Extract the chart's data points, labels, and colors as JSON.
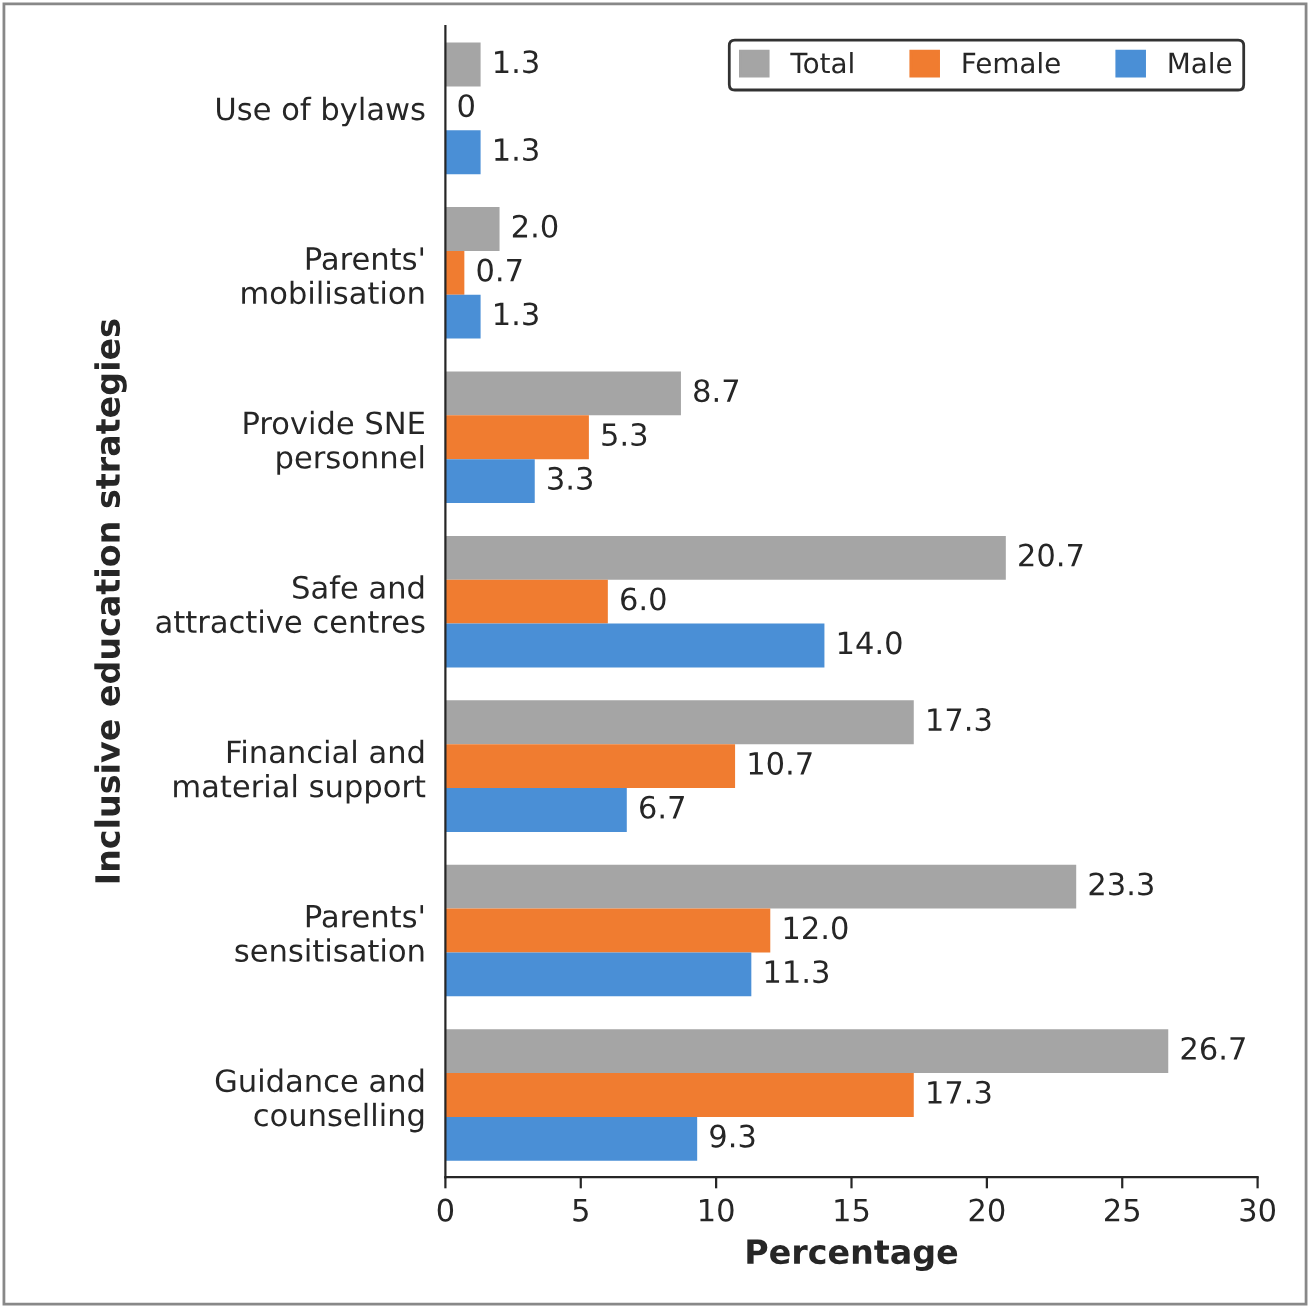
{
  "chart_data": {
    "type": "bar",
    "orientation": "horizontal",
    "xlabel": "Percentage",
    "ylabel": "Inclusive education strategies",
    "categories": [
      "Use of bylaws",
      "Parents'\nmobilisation",
      "Provide SNE\npersonnel",
      "Safe and\nattractive centres",
      "Financial and\nmaterial support",
      "Parents'\nsensitisation",
      "Guidance and\ncounselling"
    ],
    "series": [
      {
        "name": "Total",
        "color": "#a5a5a5",
        "values": [
          1.3,
          2.0,
          8.7,
          20.7,
          17.3,
          23.3,
          26.7
        ],
        "value_labels": [
          "1.3",
          "2.0",
          "8.7",
          "20.7",
          "17.3",
          "23.3",
          "26.7"
        ]
      },
      {
        "name": "Female",
        "color": "#f07c30",
        "values": [
          0,
          0.7,
          5.3,
          6.0,
          10.7,
          12.0,
          17.3
        ],
        "value_labels": [
          "0",
          "0.7",
          "5.3",
          "6.0",
          "10.7",
          "12.0",
          "17.3"
        ]
      },
      {
        "name": "Male",
        "color": "#4a8fd6",
        "values": [
          1.3,
          1.3,
          3.3,
          14.0,
          6.7,
          11.3,
          9.3
        ],
        "value_labels": [
          "1.3",
          "1.3",
          "3.3",
          "14.0",
          "6.7",
          "11.3",
          "9.3"
        ]
      }
    ],
    "xlim": [
      0,
      30
    ],
    "xticks": [
      0,
      5,
      10,
      15,
      20,
      25,
      30
    ],
    "legend": "top right",
    "grid": false
  }
}
